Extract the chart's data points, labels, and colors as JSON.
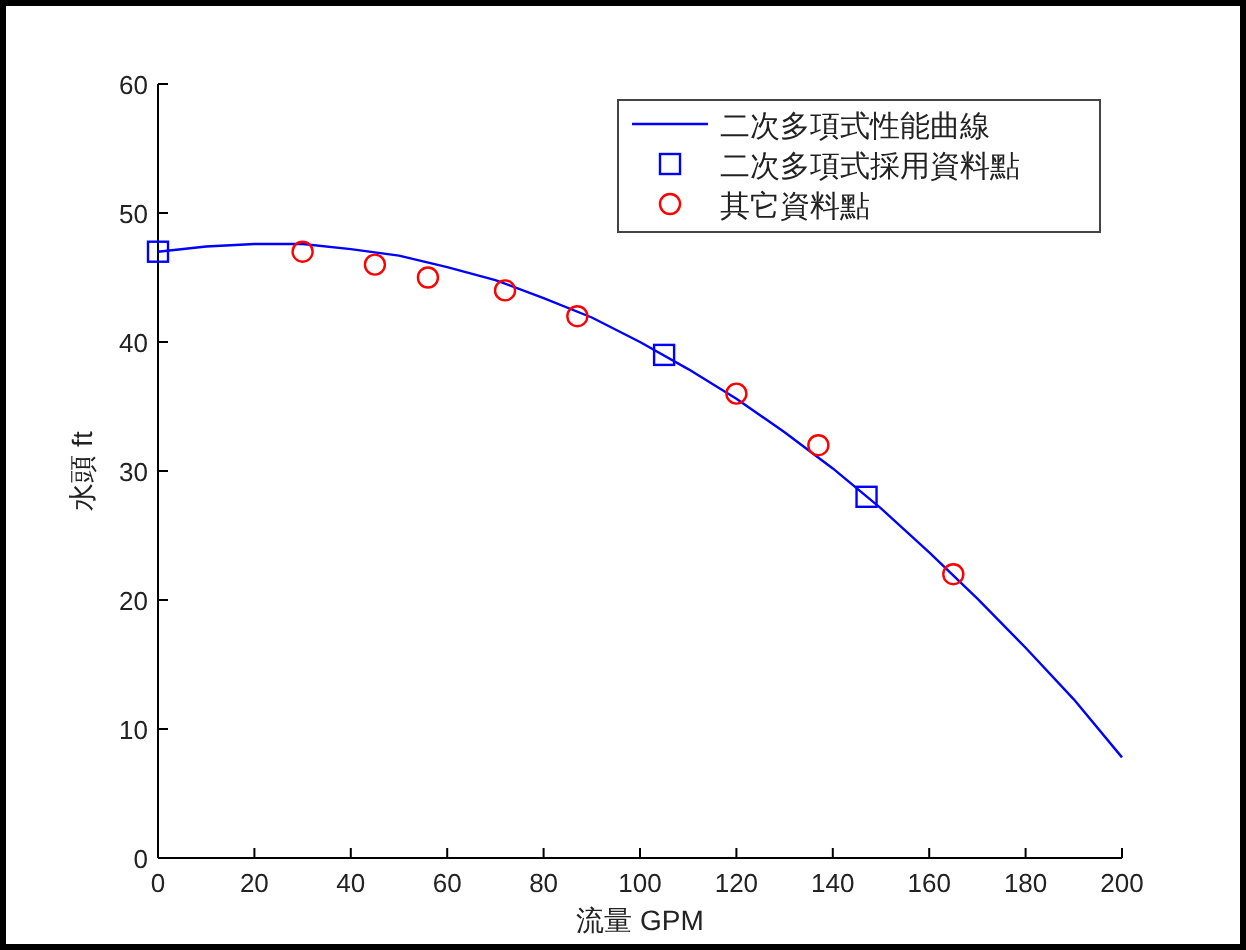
{
  "chart_data": {
    "type": "line",
    "xlabel": "流量  GPM",
    "ylabel": "水頭  ft",
    "xlim": [
      0,
      200
    ],
    "ylim": [
      0,
      60
    ],
    "xticks": [
      0,
      20,
      40,
      60,
      80,
      100,
      120,
      140,
      160,
      180,
      200
    ],
    "yticks": [
      0,
      10,
      20,
      30,
      40,
      50,
      60
    ],
    "grid": false,
    "legend": "top right",
    "series": [
      {
        "name": "二次多項式性能曲線",
        "marker": "none",
        "line_style": "solid",
        "color": "#0000ff",
        "x": [
          0,
          10,
          20,
          30,
          40,
          50,
          60,
          70,
          80,
          90,
          100,
          110,
          120,
          130,
          140,
          150,
          160,
          170,
          180,
          190,
          200
        ],
        "values": [
          47.0,
          47.4,
          47.6,
          47.6,
          47.2,
          46.7,
          45.8,
          44.8,
          43.4,
          41.9,
          40.0,
          37.9,
          35.6,
          33.0,
          30.2,
          27.1,
          23.7,
          20.1,
          16.3,
          12.3,
          7.8
        ]
      },
      {
        "name": "二次多項式採用資料點",
        "type": "scatter",
        "marker": "square",
        "color": "#0000ff",
        "x": [
          0,
          105,
          147
        ],
        "values": [
          47,
          39,
          28
        ]
      },
      {
        "name": "其它資料點",
        "type": "scatter",
        "marker": "circle",
        "color": "#ff0000",
        "x": [
          30,
          45,
          56,
          72,
          87,
          120,
          137,
          165
        ],
        "values": [
          47,
          46,
          45,
          44,
          42,
          36,
          32,
          22
        ]
      }
    ]
  }
}
